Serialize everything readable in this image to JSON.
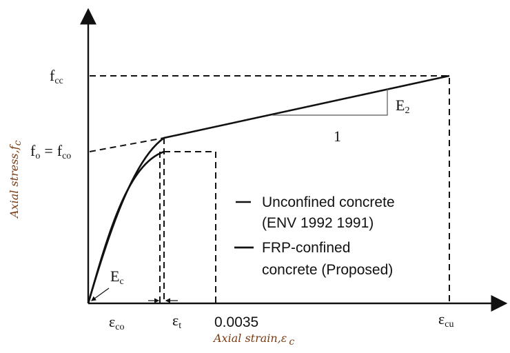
{
  "axes": {
    "y_label": {
      "text": "Axial stress,",
      "sub": "c",
      "var": "f"
    },
    "x_label": {
      "text": "Axial strain,",
      "var": "ε",
      "sub": "c"
    }
  },
  "labels": {
    "fcc": {
      "main": "f",
      "sub": "cc"
    },
    "fo": {
      "main": "f",
      "sub": "o",
      "eq": "=",
      "main2": "f",
      "sub2": "co"
    },
    "ec_modulus": {
      "main": "E",
      "sub": "c"
    },
    "e2": {
      "main": "E",
      "sub": "2"
    },
    "slope_one": "1",
    "eps_co": {
      "main": "ε",
      "sub": "co"
    },
    "eps_t": {
      "main": "ε",
      "sub": "t"
    },
    "strain_limit": "0.0035",
    "eps_cu": {
      "main": "ε",
      "sub": "cu"
    }
  },
  "legend": [
    {
      "line1": "Unconfined concrete",
      "line2": "(ENV 1992 1991)"
    },
    {
      "line1": "FRP-confined",
      "line2": "concrete (Proposed)"
    }
  ]
}
